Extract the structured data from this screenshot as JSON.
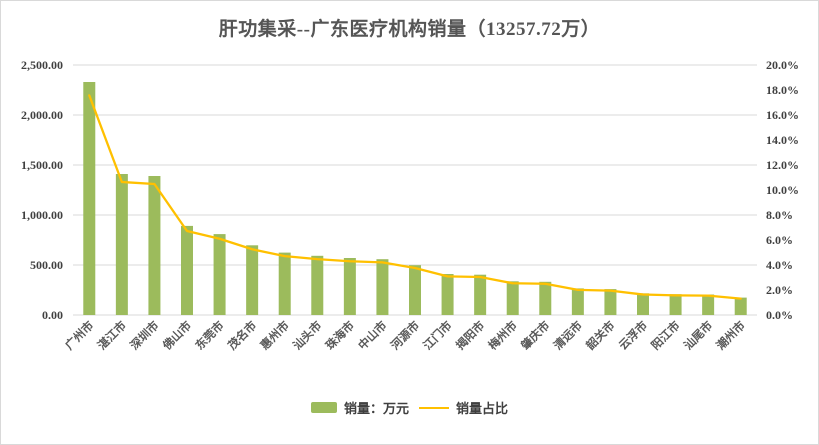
{
  "title": "肝功集采--广东医疗机构销量（13257.72万）",
  "legend": {
    "items": [
      {
        "label": "销量：万元",
        "marker": "bar",
        "color": "#9CBB5C"
      },
      {
        "label": "销量占比",
        "marker": "line",
        "color": "#FFC000"
      }
    ]
  },
  "chart_data": {
    "type": "bar",
    "combo": "bar+line",
    "title": "肝功集采--广东医疗机构销量（13257.72万）",
    "total_shown_in_title": "13257.72万",
    "categories": [
      "广州市",
      "湛江市",
      "深圳市",
      "佛山市",
      "东莞市",
      "茂名市",
      "惠州市",
      "汕头市",
      "珠海市",
      "中山市",
      "河源市",
      "江门市",
      "揭阳市",
      "梅州市",
      "肇庆市",
      "清远市",
      "韶关市",
      "云浮市",
      "阳江市",
      "汕尾市",
      "潮州市"
    ],
    "series": [
      {
        "name": "销量：万元",
        "type": "bar",
        "axis": "left",
        "color": "#9CBB5C",
        "values": [
          2330,
          1410,
          1390,
          891,
          809,
          697,
          624,
          592,
          570,
          558,
          498,
          410,
          403,
          337,
          332,
          266,
          259,
          217,
          208,
          205,
          174
        ]
      },
      {
        "name": "销量占比",
        "type": "line",
        "axis": "right",
        "color": "#FFC000",
        "values": [
          17.57,
          10.64,
          10.48,
          6.72,
          6.1,
          5.26,
          4.71,
          4.47,
          4.3,
          4.21,
          3.76,
          3.09,
          3.04,
          2.54,
          2.5,
          2.01,
          1.95,
          1.64,
          1.57,
          1.55,
          1.31
        ]
      }
    ],
    "left_axis": {
      "min": 0,
      "max": 2500,
      "step": 500,
      "tick_labels": [
        "0.00",
        "500.00",
        "1,000.00",
        "1,500.00",
        "2,000.00",
        "2,500.00"
      ]
    },
    "right_axis": {
      "min": 0,
      "max": 20,
      "step": 2,
      "tick_labels": [
        "0.0%",
        "2.0%",
        "4.0%",
        "6.0%",
        "8.0%",
        "10.0%",
        "12.0%",
        "14.0%",
        "16.0%",
        "18.0%",
        "20.0%"
      ]
    },
    "grid": {
      "color": "#d9d9d9",
      "gridlines_every_left_step": true
    },
    "legend_position": "bottom",
    "x_label_rotation_deg": 45
  }
}
